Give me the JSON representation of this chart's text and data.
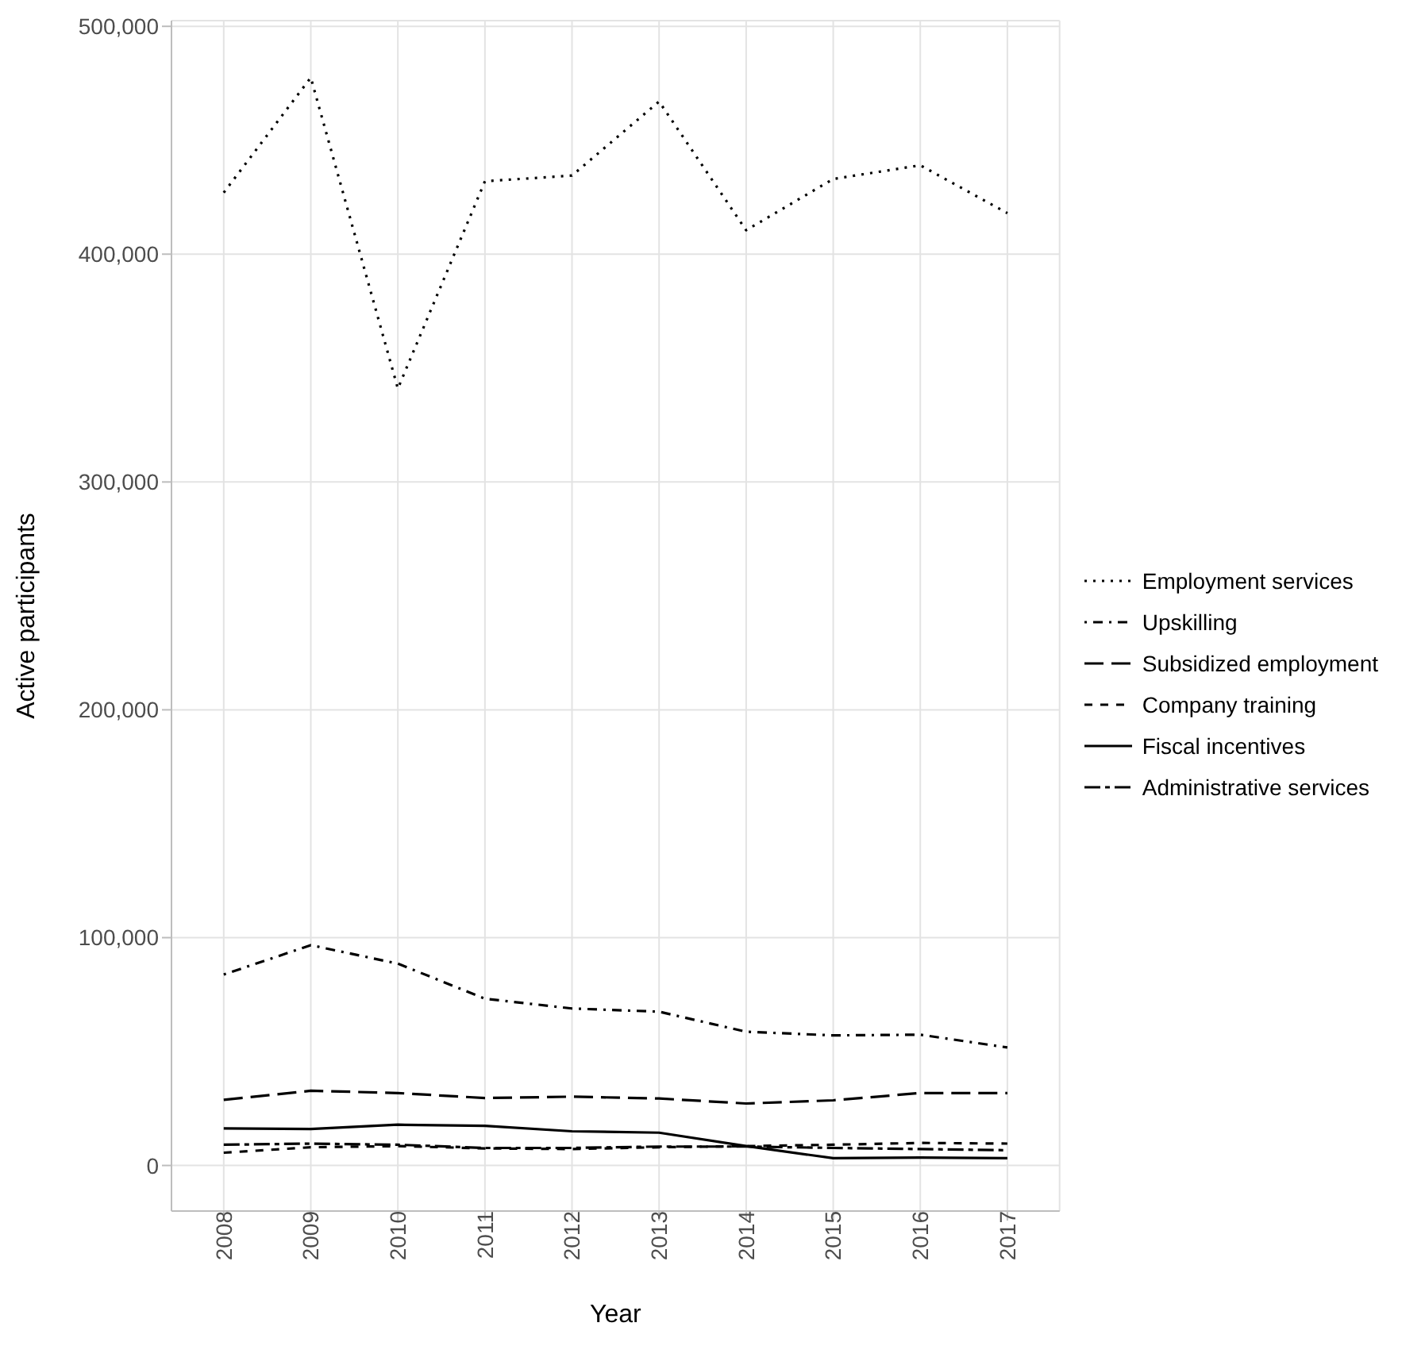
{
  "chart_data": {
    "type": "line",
    "xlabel": "Year",
    "ylabel": "Active participants",
    "categories": [
      "2008",
      "2009",
      "2010",
      "2011",
      "2012",
      "2013",
      "2014",
      "2015",
      "2016",
      "2017"
    ],
    "series": [
      {
        "name": "Employment services",
        "color": "#000000",
        "line_style": "dotted",
        "values": [
          427000,
          477500,
          341000,
          432000,
          434500,
          467000,
          410500,
          433000,
          439000,
          418000
        ]
      },
      {
        "name": "Upskilling",
        "color": "#000000",
        "line_style": "dotdash",
        "values": [
          83800,
          96700,
          88600,
          73200,
          68900,
          67500,
          58700,
          57100,
          57400,
          51800
        ]
      },
      {
        "name": "Subsidized employment",
        "color": "#000000",
        "line_style": "longdash",
        "values": [
          28800,
          32800,
          31800,
          29600,
          30200,
          29400,
          27200,
          28600,
          31800,
          31800
        ]
      },
      {
        "name": "Company training",
        "color": "#000000",
        "line_style": "dashed",
        "values": [
          5600,
          8000,
          8500,
          7500,
          7200,
          8000,
          8500,
          9100,
          9900,
          9600
        ]
      },
      {
        "name": "Fiscal incentives",
        "color": "#000000",
        "line_style": "solid",
        "values": [
          16300,
          16000,
          17900,
          17400,
          15000,
          14400,
          8500,
          3200,
          3500,
          3200
        ]
      },
      {
        "name": "Administrative services",
        "color": "#000000",
        "line_style": "twodash",
        "values": [
          9100,
          9600,
          9100,
          7700,
          7700,
          8300,
          8300,
          7700,
          7200,
          6700
        ]
      }
    ],
    "ylim": [
      -20000,
      502500
    ],
    "yticks": [
      0,
      {
        "value": 100000,
        "label": "100,000"
      },
      {
        "value": 200000,
        "label": "200,000"
      },
      {
        "value": 300000,
        "label": "300,000"
      },
      {
        "value": 400000,
        "label": "400,000"
      },
      {
        "value": 500000,
        "label": "500,000"
      }
    ],
    "grid": true,
    "legend": "right",
    "marker": "none"
  }
}
